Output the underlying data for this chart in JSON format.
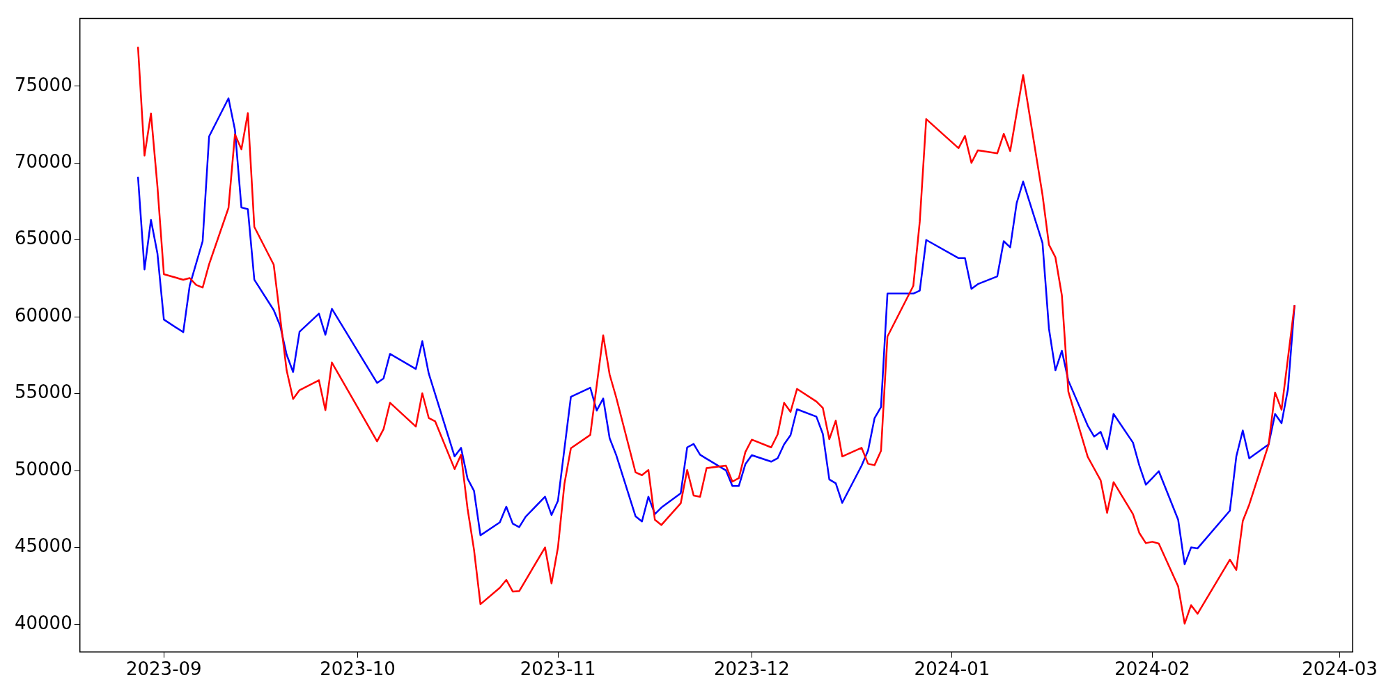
{
  "chart_data": {
    "type": "line",
    "xlim": [
      "2023-08-19",
      "2024-03-03"
    ],
    "xticks": [
      "2023-09",
      "2023-10",
      "2023-11",
      "2023-12",
      "2024-01",
      "2024-02",
      "2024-03"
    ],
    "ylim": [
      38200,
      79400
    ],
    "yticks": [
      40000,
      45000,
      50000,
      55000,
      60000,
      65000,
      70000,
      75000
    ],
    "series": [
      {
        "color": "#ff0000",
        "x": [
          "2023-08-28",
          "2023-08-29",
          "2023-08-30",
          "2023-08-31",
          "2023-09-01",
          "2023-09-04",
          "2023-09-05",
          "2023-09-06",
          "2023-09-07",
          "2023-09-08",
          "2023-09-11",
          "2023-09-12",
          "2023-09-13",
          "2023-09-14",
          "2023-09-15",
          "2023-09-18",
          "2023-09-20",
          "2023-09-21",
          "2023-09-22",
          "2023-09-25",
          "2023-09-26",
          "2023-09-27",
          "2023-10-04",
          "2023-10-05",
          "2023-10-06",
          "2023-10-10",
          "2023-10-11",
          "2023-10-12",
          "2023-10-13",
          "2023-10-16",
          "2023-10-17",
          "2023-10-18",
          "2023-10-19",
          "2023-10-20",
          "2023-10-23",
          "2023-10-24",
          "2023-10-25",
          "2023-10-26",
          "2023-10-30",
          "2023-10-31",
          "2023-11-01",
          "2023-11-02",
          "2023-11-03",
          "2023-11-06",
          "2023-11-08",
          "2023-11-09",
          "2023-11-10",
          "2023-11-13",
          "2023-11-14",
          "2023-11-15",
          "2023-11-16",
          "2023-11-17",
          "2023-11-20",
          "2023-11-21",
          "2023-11-22",
          "2023-11-23",
          "2023-11-24",
          "2023-11-27",
          "2023-11-28",
          "2023-11-29",
          "2023-11-30",
          "2023-12-01",
          "2023-12-04",
          "2023-12-05",
          "2023-12-06",
          "2023-12-07",
          "2023-12-08",
          "2023-12-11",
          "2023-12-12",
          "2023-12-13",
          "2023-12-14",
          "2023-12-15",
          "2023-12-18",
          "2023-12-19",
          "2023-12-20",
          "2023-12-21",
          "2023-12-22",
          "2023-12-26",
          "2023-12-27",
          "2023-12-28",
          "2024-01-02",
          "2024-01-03",
          "2024-01-04",
          "2024-01-05",
          "2024-01-08",
          "2024-01-09",
          "2024-01-10",
          "2024-01-12",
          "2024-01-15",
          "2024-01-16",
          "2024-01-17",
          "2024-01-18",
          "2024-01-19",
          "2024-01-22",
          "2024-01-23",
          "2024-01-24",
          "2024-01-25",
          "2024-01-26",
          "2024-01-29",
          "2024-01-30",
          "2024-01-31",
          "2024-02-01",
          "2024-02-02",
          "2024-02-05",
          "2024-02-06",
          "2024-02-07",
          "2024-02-08",
          "2024-02-13",
          "2024-02-14",
          "2024-02-15",
          "2024-02-16",
          "2024-02-19",
          "2024-02-20",
          "2024-02-21",
          "2024-02-23"
        ],
        "values": [
          77510,
          70490,
          73230,
          68490,
          62770,
          62410,
          62520,
          62070,
          61900,
          63420,
          67080,
          71870,
          70890,
          73250,
          65850,
          63390,
          56520,
          54660,
          55230,
          55870,
          53930,
          57030,
          51900,
          52690,
          54410,
          52860,
          55030,
          53420,
          53200,
          50100,
          51030,
          47540,
          44860,
          41310,
          42380,
          42890,
          42130,
          42160,
          45000,
          42660,
          45000,
          49140,
          51450,
          52320,
          58800,
          56240,
          54780,
          49890,
          49700,
          50040,
          46800,
          46460,
          47870,
          50040,
          48380,
          48300,
          50160,
          50320,
          49280,
          49510,
          51200,
          52010,
          51510,
          52350,
          54410,
          53820,
          55310,
          54490,
          54070,
          52040,
          53250,
          50920,
          51480,
          50440,
          50350,
          51280,
          58720,
          62010,
          66180,
          72860,
          70970,
          71760,
          70010,
          70830,
          70630,
          71900,
          70780,
          75730,
          67930,
          64690,
          63870,
          61390,
          55140,
          50890,
          50130,
          49370,
          47250,
          49250,
          47170,
          45930,
          45280,
          45370,
          45250,
          42470,
          40040,
          41250,
          40690,
          44210,
          43540,
          46720,
          47790,
          51700,
          55080,
          53960,
          60720
        ]
      },
      {
        "color": "#0000ff",
        "x": [
          "2023-08-28",
          "2023-08-29",
          "2023-08-30",
          "2023-08-31",
          "2023-09-01",
          "2023-09-04",
          "2023-09-05",
          "2023-09-07",
          "2023-09-08",
          "2023-09-11",
          "2023-09-12",
          "2023-09-13",
          "2023-09-14",
          "2023-09-15",
          "2023-09-18",
          "2023-09-19",
          "2023-09-20",
          "2023-09-21",
          "2023-09-22",
          "2023-09-25",
          "2023-09-26",
          "2023-09-27",
          "2023-10-04",
          "2023-10-05",
          "2023-10-06",
          "2023-10-10",
          "2023-10-11",
          "2023-10-12",
          "2023-10-16",
          "2023-10-17",
          "2023-10-18",
          "2023-10-19",
          "2023-10-20",
          "2023-10-23",
          "2023-10-24",
          "2023-10-25",
          "2023-10-26",
          "2023-10-27",
          "2023-10-30",
          "2023-10-31",
          "2023-11-01",
          "2023-11-03",
          "2023-11-06",
          "2023-11-07",
          "2023-11-08",
          "2023-11-09",
          "2023-11-10",
          "2023-11-13",
          "2023-11-14",
          "2023-11-15",
          "2023-11-16",
          "2023-11-17",
          "2023-11-20",
          "2023-11-21",
          "2023-11-22",
          "2023-11-23",
          "2023-11-24",
          "2023-11-27",
          "2023-11-28",
          "2023-11-29",
          "2023-11-30",
          "2023-12-01",
          "2023-12-04",
          "2023-12-05",
          "2023-12-06",
          "2023-12-07",
          "2023-12-08",
          "2023-12-11",
          "2023-12-12",
          "2023-12-13",
          "2023-12-14",
          "2023-12-15",
          "2023-12-18",
          "2023-12-19",
          "2023-12-20",
          "2023-12-21",
          "2023-12-22",
          "2023-12-26",
          "2023-12-27",
          "2023-12-28",
          "2024-01-02",
          "2024-01-03",
          "2024-01-04",
          "2024-01-05",
          "2024-01-08",
          "2024-01-09",
          "2024-01-10",
          "2024-01-11",
          "2024-01-12",
          "2024-01-15",
          "2024-01-16",
          "2024-01-17",
          "2024-01-18",
          "2024-01-19",
          "2024-01-22",
          "2024-01-23",
          "2024-01-24",
          "2024-01-25",
          "2024-01-26",
          "2024-01-29",
          "2024-01-30",
          "2024-01-31",
          "2024-02-01",
          "2024-02-02",
          "2024-02-05",
          "2024-02-06",
          "2024-02-07",
          "2024-02-08",
          "2024-02-13",
          "2024-02-14",
          "2024-02-15",
          "2024-02-16",
          "2024-02-19",
          "2024-02-20",
          "2024-02-21",
          "2024-02-22",
          "2024-02-23"
        ],
        "values": [
          69060,
          63080,
          66300,
          64130,
          59820,
          59000,
          62040,
          64920,
          71730,
          74210,
          72160,
          67110,
          67000,
          62410,
          60440,
          59420,
          57540,
          56410,
          59030,
          60210,
          58830,
          60520,
          55700,
          55990,
          57590,
          56610,
          58410,
          56310,
          50920,
          51480,
          49480,
          48690,
          45790,
          46630,
          47650,
          46550,
          46320,
          47000,
          48300,
          47110,
          48040,
          54800,
          55390,
          53900,
          54690,
          52100,
          51030,
          47030,
          46690,
          48300,
          47170,
          47590,
          48520,
          51510,
          51730,
          51030,
          50770,
          50010,
          49000,
          49000,
          50410,
          51000,
          50580,
          50800,
          51700,
          52300,
          53990,
          53510,
          52380,
          49420,
          49170,
          47900,
          50320,
          51310,
          53400,
          54130,
          61510,
          61510,
          61700,
          65000,
          63820,
          63820,
          61820,
          62130,
          62630,
          64920,
          64520,
          67390,
          68800,
          64800,
          59230,
          56520,
          57790,
          55850,
          52920,
          52210,
          52520,
          51390,
          53680,
          51820,
          50320,
          49080,
          49510,
          49960,
          46800,
          43900,
          45000,
          44940,
          47390,
          50920,
          52610,
          50800,
          51700,
          53680,
          53080,
          55310,
          60720
        ]
      }
    ]
  }
}
